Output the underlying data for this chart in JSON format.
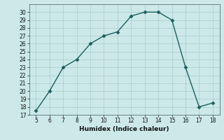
{
  "x": [
    5,
    6,
    7,
    8,
    9,
    10,
    11,
    12,
    13,
    14,
    15,
    16,
    17,
    18
  ],
  "y": [
    17.5,
    20,
    23,
    24,
    26,
    27,
    27.5,
    29.5,
    30,
    30,
    29,
    23,
    18,
    18.5
  ],
  "xlabel": "Humidex (Indice chaleur)",
  "xlim": [
    4.5,
    18.5
  ],
  "ylim": [
    17,
    31
  ],
  "xticks": [
    5,
    6,
    7,
    8,
    9,
    10,
    11,
    12,
    13,
    14,
    15,
    16,
    17,
    18
  ],
  "yticks": [
    17,
    18,
    19,
    20,
    21,
    22,
    23,
    24,
    25,
    26,
    27,
    28,
    29,
    30
  ],
  "line_color": "#1a5f5f",
  "bg_color": "#cce8e8",
  "grid_color": "#aacccc",
  "marker": "D",
  "marker_size": 2.5,
  "linewidth": 1.0
}
